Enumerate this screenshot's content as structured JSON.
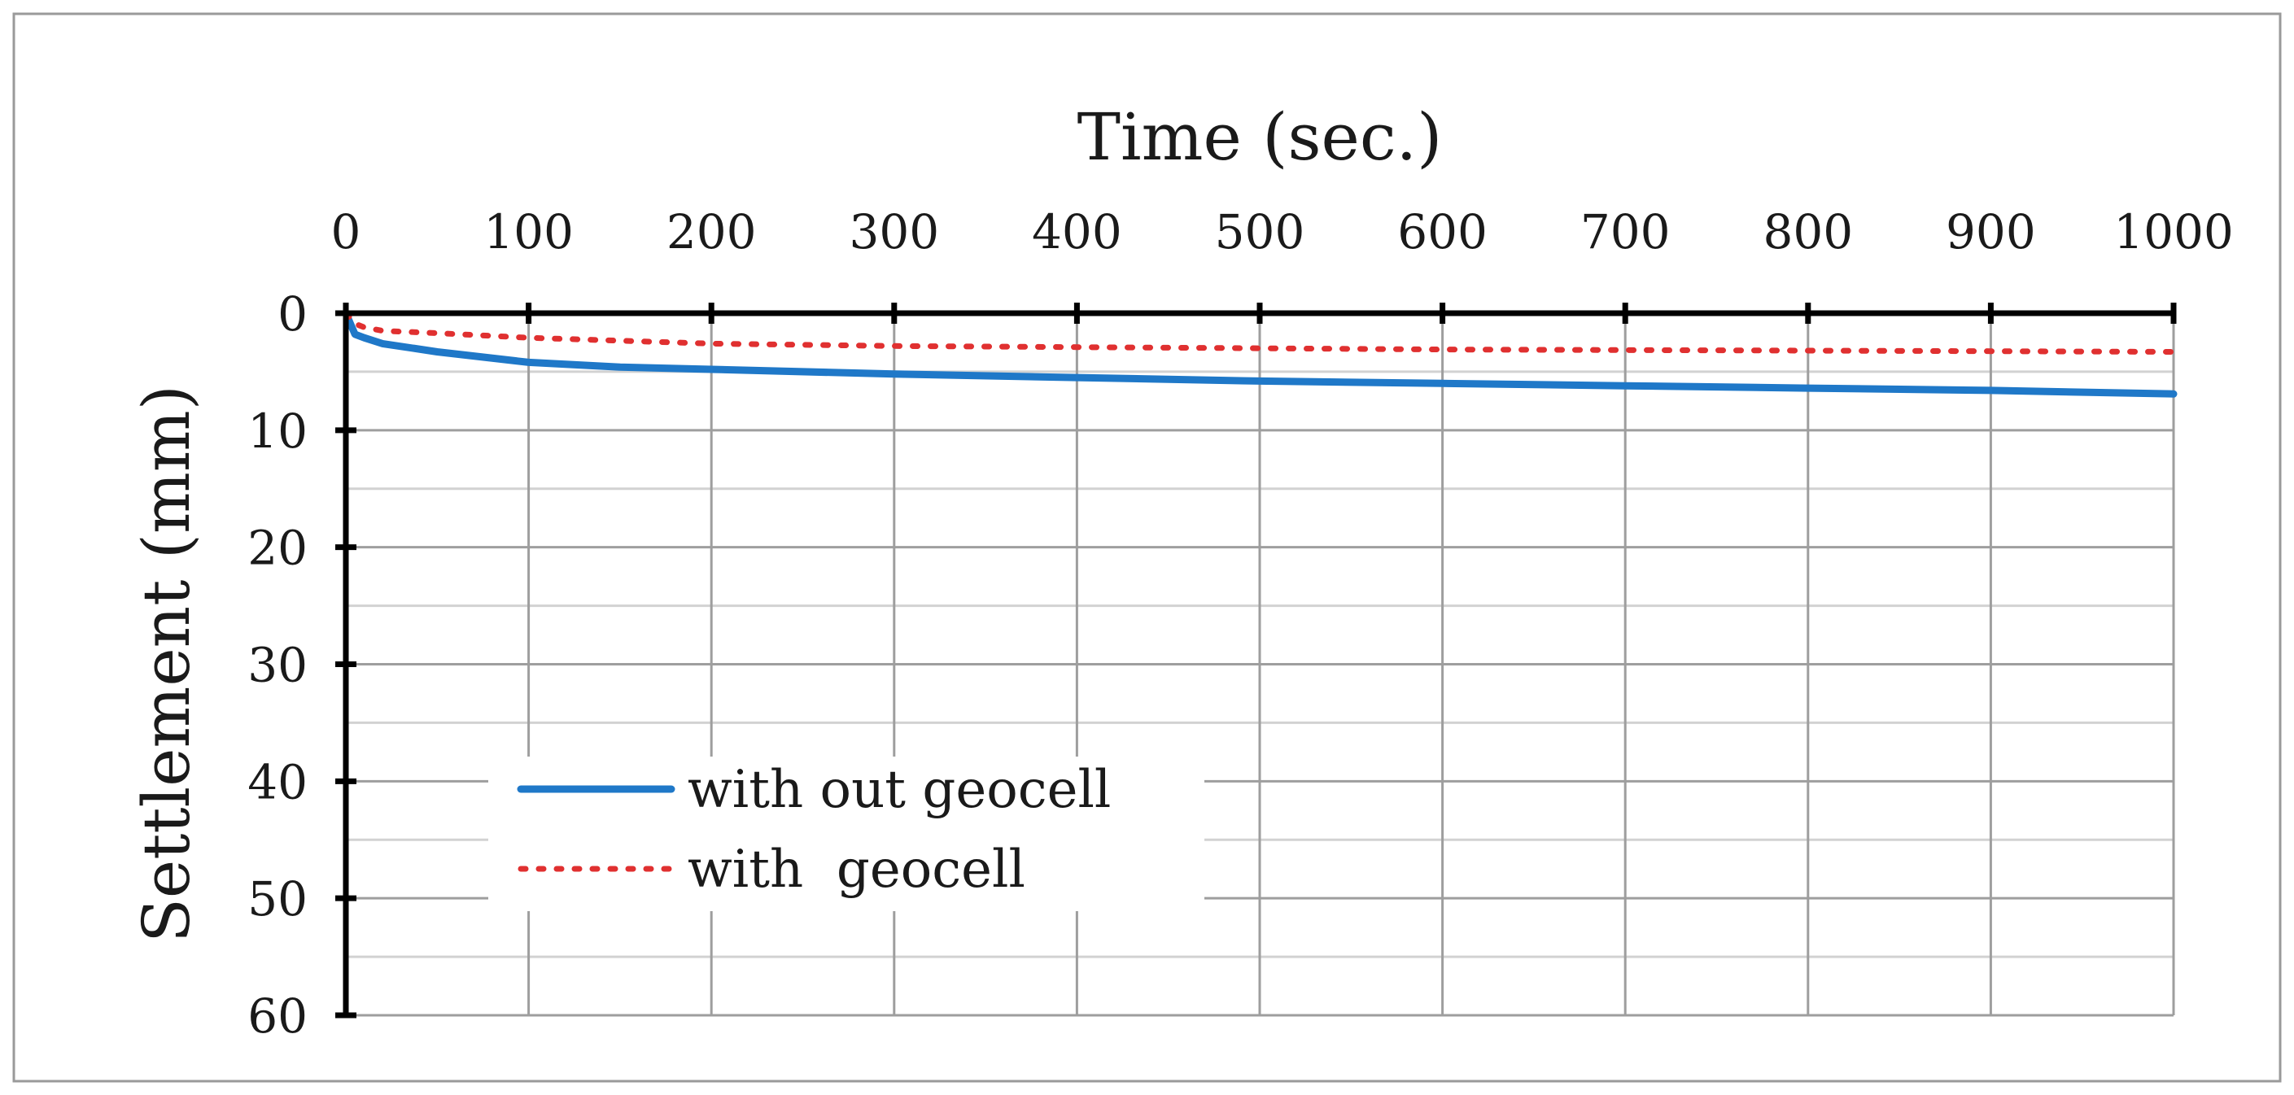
{
  "chart_data": {
    "type": "line",
    "title": "",
    "xlabel": "Time (sec.)",
    "ylabel": "Settlement (mm)",
    "x_axis_position": "top",
    "y_inverted": true,
    "xlim": [
      0,
      1000
    ],
    "ylim": [
      0,
      60
    ],
    "x_ticks": [
      "0",
      "100",
      "200",
      "300",
      "400",
      "500",
      "600",
      "700",
      "800",
      "900",
      "1000"
    ],
    "y_ticks": [
      "0",
      "10",
      "20",
      "30",
      "40",
      "50",
      "60"
    ],
    "grid": true,
    "legend_position": "lower-left",
    "series": [
      {
        "name": "with out geocell",
        "color": "#1f78c8",
        "style": "solid",
        "x": [
          0,
          5,
          10,
          20,
          50,
          100,
          150,
          200,
          300,
          400,
          500,
          600,
          700,
          800,
          900,
          1000
        ],
        "y": [
          0,
          1.8,
          2.1,
          2.6,
          3.3,
          4.2,
          4.6,
          4.8,
          5.2,
          5.5,
          5.8,
          6.0,
          6.2,
          6.4,
          6.6,
          6.9
        ]
      },
      {
        "name": "with  geocell",
        "color": "#e03030",
        "style": "dotted",
        "x": [
          0,
          5,
          10,
          20,
          50,
          100,
          200,
          300,
          400,
          500,
          600,
          700,
          800,
          900,
          1000
        ],
        "y": [
          0,
          0.9,
          1.2,
          1.5,
          1.7,
          2.1,
          2.6,
          2.8,
          2.9,
          3.0,
          3.1,
          3.15,
          3.2,
          3.25,
          3.3
        ]
      }
    ]
  }
}
